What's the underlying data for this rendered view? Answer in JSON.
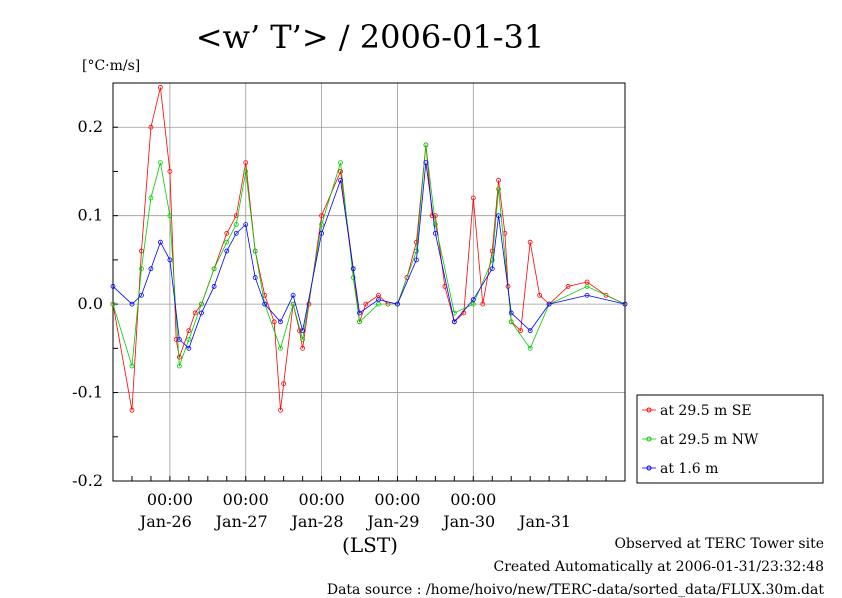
{
  "chart_data": {
    "type": "line",
    "title": "<w’ T’> / 2006-01-31",
    "ylabel": "[°C·m/s]",
    "xlabel": "(LST)",
    "ylim": [
      -0.2,
      0.25
    ],
    "xlim": [
      "2006-01-25T06:00",
      "2006-02-01T00:00"
    ],
    "y_ticks": [
      "-0.2",
      "-0.1",
      "0.0",
      "0.1",
      "0.2"
    ],
    "time_ticks": [
      "00:00",
      "00:00",
      "00:00",
      "00:00",
      "00:00"
    ],
    "date_ticks": [
      "Jan-26",
      "Jan-27",
      "Jan-28",
      "Jan-29",
      "Jan-30",
      "Jan-31"
    ],
    "grid": true,
    "legend_position": "bottom-right",
    "series": [
      {
        "name": "at 29.5 m SE",
        "color": "#ff0000",
        "x": [
          "2006-01-25T06:00",
          "2006-01-25T12:00",
          "2006-01-25T15:00",
          "2006-01-25T18:00",
          "2006-01-25T21:00",
          "2006-01-26T00:00",
          "2006-01-26T02:00",
          "2006-01-26T03:00",
          "2006-01-26T06:00",
          "2006-01-26T08:00",
          "2006-01-26T10:00",
          "2006-01-26T14:00",
          "2006-01-26T18:00",
          "2006-01-26T21:00",
          "2006-01-27T00:00",
          "2006-01-27T03:00",
          "2006-01-27T06:00",
          "2006-01-27T09:00",
          "2006-01-27T11:00",
          "2006-01-27T12:00",
          "2006-01-27T15:00",
          "2006-01-27T17:00",
          "2006-01-27T18:00",
          "2006-01-27T20:00",
          "2006-01-28T00:00",
          "2006-01-28T06:00",
          "2006-01-28T10:00",
          "2006-01-28T12:00",
          "2006-01-28T14:00",
          "2006-01-28T18:00",
          "2006-01-28T21:00",
          "2006-01-29T00:00",
          "2006-01-29T03:00",
          "2006-01-29T06:00",
          "2006-01-29T09:00",
          "2006-01-29T11:00",
          "2006-01-29T12:00",
          "2006-01-29T15:00",
          "2006-01-29T18:00",
          "2006-01-29T21:00",
          "2006-01-30T00:00",
          "2006-01-30T03:00",
          "2006-01-30T06:00",
          "2006-01-30T08:00",
          "2006-01-30T10:00",
          "2006-01-30T11:00",
          "2006-01-30T12:00",
          "2006-01-30T15:00",
          "2006-01-30T18:00",
          "2006-01-30T21:00",
          "2006-01-31T00:00",
          "2006-01-31T06:00",
          "2006-01-31T12:00",
          "2006-01-31T18:00",
          "2006-02-01T00:00"
        ],
        "values": [
          0.0,
          -0.12,
          0.06,
          0.2,
          0.245,
          0.15,
          -0.04,
          -0.06,
          -0.03,
          -0.01,
          0.0,
          0.04,
          0.08,
          0.1,
          0.16,
          0.06,
          0.01,
          -0.02,
          -0.12,
          -0.09,
          0.0,
          -0.03,
          -0.05,
          0.0,
          0.1,
          0.15,
          0.04,
          -0.02,
          0.0,
          0.01,
          0.0,
          0.0,
          0.03,
          0.07,
          0.18,
          0.1,
          0.1,
          0.02,
          -0.02,
          -0.01,
          0.12,
          0.0,
          0.06,
          0.14,
          0.08,
          0.02,
          -0.02,
          -0.03,
          0.07,
          0.01,
          0.0,
          0.02,
          0.025,
          0.01,
          0.0
        ]
      },
      {
        "name": "at 29.5 m NW",
        "color": "#00cc00",
        "x": [
          "2006-01-25T06:00",
          "2006-01-25T12:00",
          "2006-01-25T15:00",
          "2006-01-25T18:00",
          "2006-01-25T21:00",
          "2006-01-26T00:00",
          "2006-01-26T03:00",
          "2006-01-26T06:00",
          "2006-01-26T10:00",
          "2006-01-26T14:00",
          "2006-01-26T18:00",
          "2006-01-26T21:00",
          "2006-01-27T00:00",
          "2006-01-27T03:00",
          "2006-01-27T06:00",
          "2006-01-27T11:00",
          "2006-01-27T15:00",
          "2006-01-27T18:00",
          "2006-01-28T00:00",
          "2006-01-28T06:00",
          "2006-01-28T10:00",
          "2006-01-28T12:00",
          "2006-01-28T18:00",
          "2006-01-29T00:00",
          "2006-01-29T06:00",
          "2006-01-29T09:00",
          "2006-01-29T12:00",
          "2006-01-29T18:00",
          "2006-01-30T00:00",
          "2006-01-30T06:00",
          "2006-01-30T08:00",
          "2006-01-30T12:00",
          "2006-01-30T18:00",
          "2006-01-31T00:00",
          "2006-01-31T12:00",
          "2006-02-01T00:00"
        ],
        "values": [
          0.0,
          -0.07,
          0.04,
          0.12,
          0.16,
          0.1,
          -0.07,
          -0.04,
          0.0,
          0.04,
          0.07,
          0.09,
          0.15,
          0.06,
          0.0,
          -0.05,
          0.0,
          -0.04,
          0.09,
          0.16,
          0.03,
          -0.02,
          0.0,
          0.0,
          0.06,
          0.18,
          0.09,
          -0.01,
          0.0,
          0.05,
          0.13,
          -0.02,
          -0.05,
          0.0,
          0.02,
          0.0
        ]
      },
      {
        "name": "at 1.6 m",
        "color": "#0000ff",
        "x": [
          "2006-01-25T06:00",
          "2006-01-25T12:00",
          "2006-01-25T15:00",
          "2006-01-25T18:00",
          "2006-01-25T21:00",
          "2006-01-26T00:00",
          "2006-01-26T03:00",
          "2006-01-26T06:00",
          "2006-01-26T10:00",
          "2006-01-26T14:00",
          "2006-01-26T18:00",
          "2006-01-26T21:00",
          "2006-01-27T00:00",
          "2006-01-27T03:00",
          "2006-01-27T06:00",
          "2006-01-27T11:00",
          "2006-01-27T15:00",
          "2006-01-27T18:00",
          "2006-01-28T00:00",
          "2006-01-28T06:00",
          "2006-01-28T10:00",
          "2006-01-28T12:00",
          "2006-01-28T18:00",
          "2006-01-29T00:00",
          "2006-01-29T06:00",
          "2006-01-29T09:00",
          "2006-01-29T12:00",
          "2006-01-29T18:00",
          "2006-01-30T00:00",
          "2006-01-30T06:00",
          "2006-01-30T08:00",
          "2006-01-30T12:00",
          "2006-01-30T18:00",
          "2006-01-31T00:00",
          "2006-01-31T12:00",
          "2006-02-01T00:00"
        ],
        "values": [
          0.02,
          0.0,
          0.01,
          0.04,
          0.07,
          0.05,
          -0.04,
          -0.05,
          -0.01,
          0.02,
          0.06,
          0.08,
          0.09,
          0.03,
          0.0,
          -0.02,
          0.01,
          -0.03,
          0.08,
          0.14,
          0.04,
          -0.01,
          0.005,
          0.0,
          0.05,
          0.16,
          0.08,
          -0.02,
          0.005,
          0.04,
          0.1,
          -0.01,
          -0.03,
          0.0,
          0.01,
          0.0
        ]
      }
    ]
  },
  "footer": {
    "observed": "Observed at TERC Tower site",
    "created": "Created Automatically at 2006-01-31/23:32:48",
    "source": "Data source : /home/hoivo/new/TERC-data/sorted_data/FLUX.30m.dat"
  }
}
